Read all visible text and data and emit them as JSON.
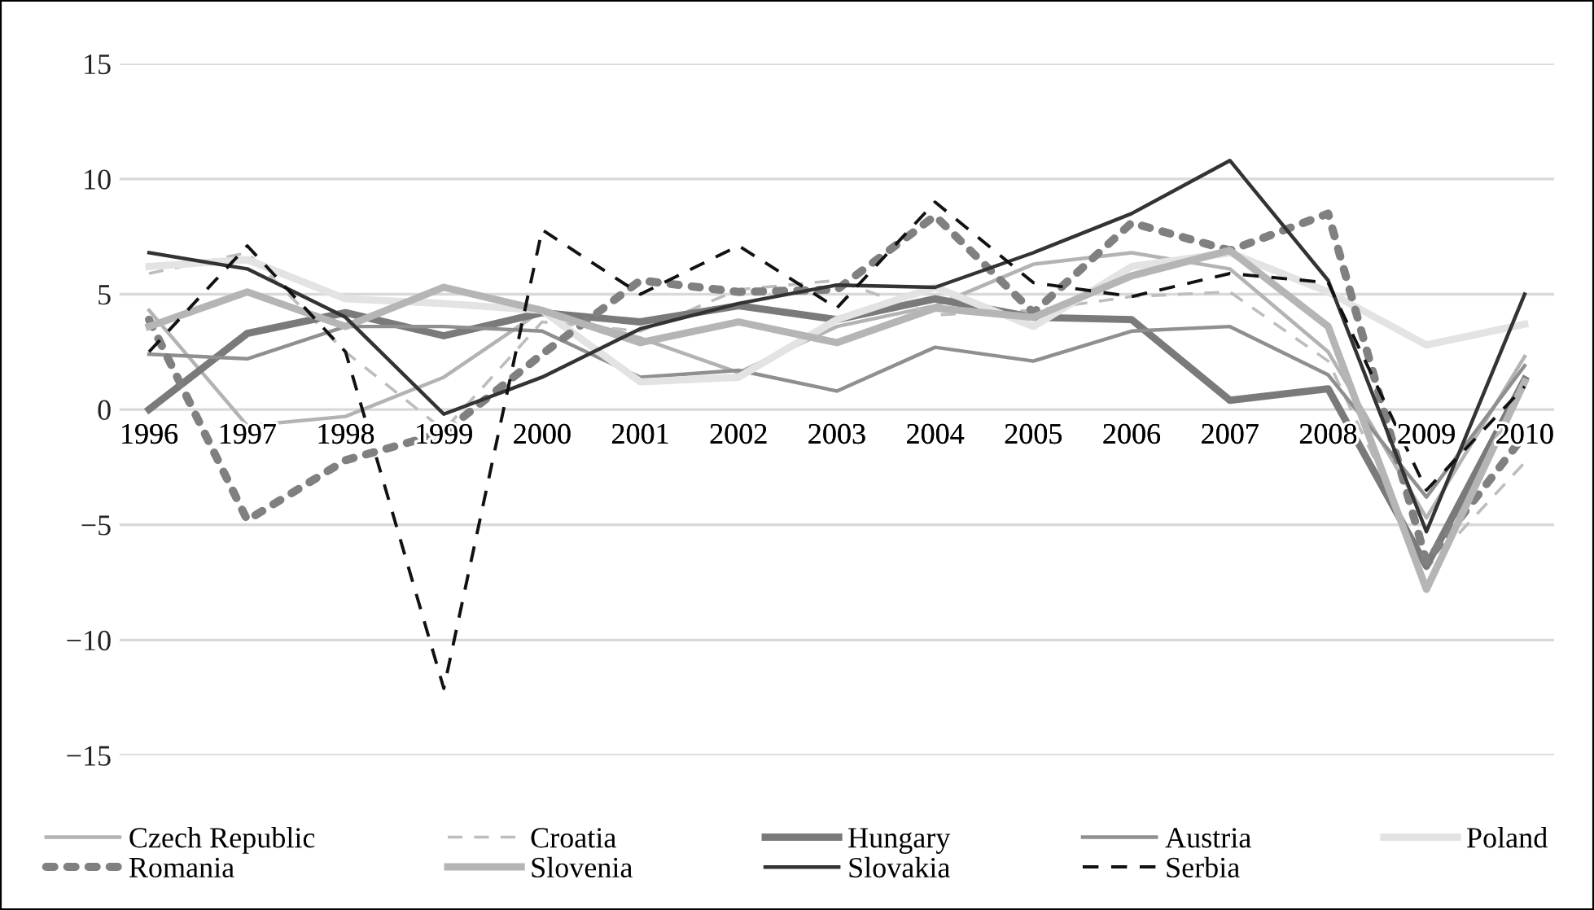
{
  "chart_data": {
    "type": "line",
    "categories": [
      "1996",
      "1997",
      "1998",
      "1999",
      "2000",
      "2001",
      "2002",
      "2003",
      "2004",
      "2005",
      "2006",
      "2007",
      "2008",
      "2009",
      "2010"
    ],
    "ylim": [
      -15,
      15
    ],
    "yticks": [
      -15,
      -10,
      -5,
      0,
      5,
      10,
      15
    ],
    "grid": "y",
    "legend": "bottom",
    "marker": "none",
    "series": [
      {
        "name": "Czech Republic",
        "color": "#b3b3b3",
        "line_style": "solid",
        "values": [
          4.3,
          -0.7,
          -0.3,
          1.4,
          4.3,
          3.1,
          1.6,
          3.6,
          4.5,
          6.3,
          6.8,
          6.1,
          2.5,
          -4.7,
          2.3
        ]
      },
      {
        "name": "Croatia",
        "color": "#bdbdbd",
        "line_style": "dashed",
        "values": [
          5.9,
          6.8,
          2.5,
          -0.9,
          3.8,
          3.4,
          5.2,
          5.6,
          4.1,
          4.3,
          4.9,
          5.1,
          2.1,
          -6.9,
          -2.3
        ]
      },
      {
        "name": "Hungary",
        "color": "#7a7a7a",
        "line_style": "solid",
        "values": [
          0.0,
          3.3,
          4.2,
          3.2,
          4.2,
          3.8,
          4.5,
          3.9,
          4.8,
          4.0,
          3.9,
          0.4,
          0.9,
          -6.8,
          1.3
        ]
      },
      {
        "name": "Austria",
        "color": "#8f8f8f",
        "line_style": "solid",
        "values": [
          2.4,
          2.2,
          3.6,
          3.6,
          3.4,
          1.4,
          1.7,
          0.8,
          2.7,
          2.1,
          3.4,
          3.6,
          1.5,
          -3.8,
          1.9
        ]
      },
      {
        "name": "Poland",
        "color": "#e3e3e3",
        "line_style": "solid",
        "values": [
          6.2,
          6.5,
          4.8,
          4.6,
          4.3,
          1.2,
          1.4,
          3.9,
          5.3,
          3.6,
          6.2,
          6.8,
          5.1,
          2.8,
          3.7
        ]
      },
      {
        "name": "Romania",
        "color": "#808080",
        "line_style": "dotted",
        "values": [
          3.9,
          -4.8,
          -2.2,
          -1.0,
          2.4,
          5.6,
          5.1,
          5.2,
          8.4,
          4.2,
          8.1,
          6.9,
          8.5,
          -6.6,
          -1.1
        ]
      },
      {
        "name": "Slovenia",
        "color": "#b5b5b5",
        "line_style": "solid",
        "values": [
          3.6,
          5.1,
          3.6,
          5.3,
          4.3,
          2.9,
          3.8,
          2.9,
          4.4,
          4.0,
          5.8,
          6.9,
          3.6,
          -7.8,
          1.2
        ]
      },
      {
        "name": "Slovakia",
        "color": "#333333",
        "line_style": "solid",
        "values": [
          6.8,
          6.1,
          4.0,
          -0.2,
          1.4,
          3.5,
          4.6,
          5.4,
          5.3,
          6.8,
          8.5,
          10.8,
          5.6,
          -5.3,
          5.0
        ]
      },
      {
        "name": "Serbia",
        "color": "#111111",
        "line_style": "dashed",
        "values": [
          2.5,
          7.1,
          2.5,
          -12.1,
          7.8,
          5.0,
          7.1,
          4.4,
          9.0,
          5.5,
          4.9,
          5.9,
          5.5,
          -3.5,
          1.0
        ]
      }
    ]
  }
}
